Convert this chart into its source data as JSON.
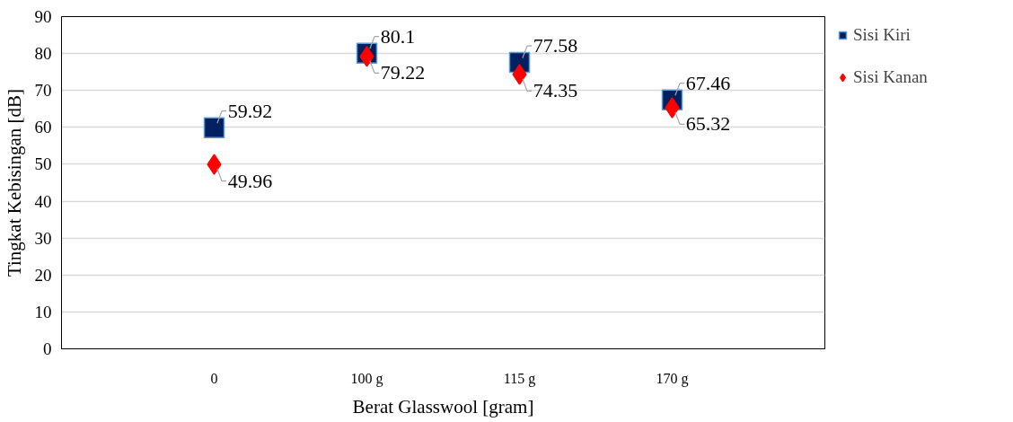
{
  "chart_data": {
    "type": "scatter",
    "xlabel": "Berat Glasswool [gram]",
    "ylabel": "Tingkat Kebisingan [dB]",
    "categories": [
      "0",
      "100 g",
      "115 g",
      "170 g"
    ],
    "series": [
      {
        "name": "Sisi Kiri",
        "color": "#002060",
        "marker": "square",
        "values": [
          59.92,
          80.1,
          77.58,
          67.46
        ]
      },
      {
        "name": "Sisi Kanan",
        "color": "#ff0000",
        "marker": "diamond",
        "values": [
          49.96,
          79.22,
          74.35,
          65.32
        ]
      }
    ],
    "ylim": [
      0,
      90
    ],
    "yticks": [
      0,
      10,
      20,
      30,
      40,
      50,
      60,
      70,
      80,
      90
    ],
    "grid": "y",
    "legend": "right",
    "data_labels": true
  }
}
